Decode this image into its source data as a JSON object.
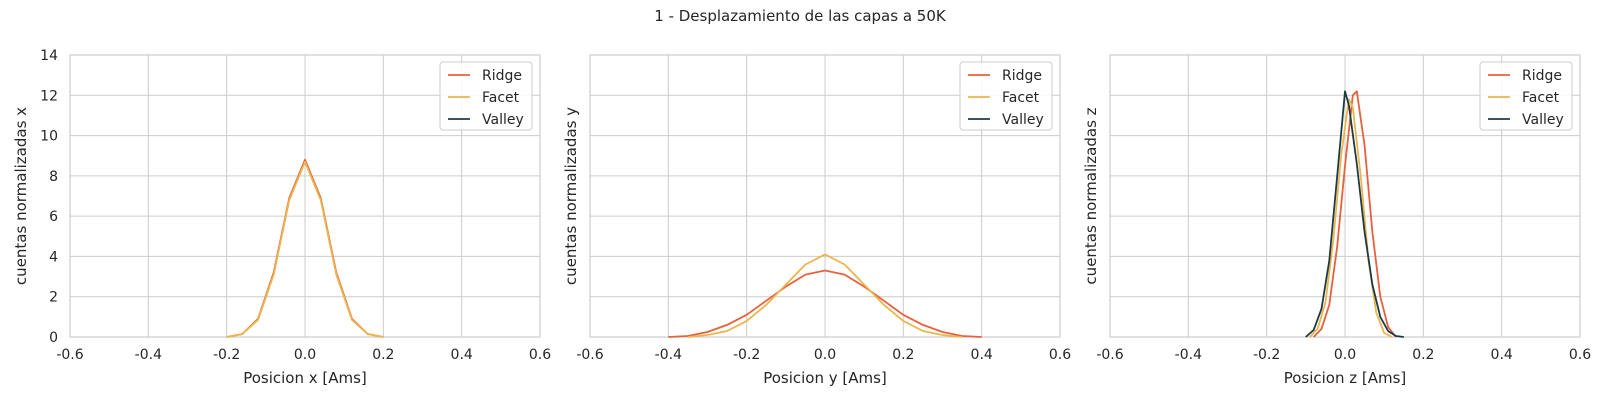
{
  "figure_title": "1 - Desplazamiento de las capas a 50K",
  "colors": {
    "Ridge": "#e8603c",
    "Facet": "#eab54d",
    "Valley": "#1d3b44",
    "grid": "#cccccc",
    "frame": "#cccccc",
    "text": "#262626"
  },
  "chart_data": [
    {
      "type": "line",
      "xlabel": "Posicion x [Ams]",
      "ylabel": "cuentas normalizadas x",
      "xlim": [
        -0.6,
        0.6
      ],
      "ylim": [
        0,
        14
      ],
      "xticks": [
        "-0.6",
        "-0.4",
        "-0.2",
        "0.0",
        "0.2",
        "0.4",
        "0.6"
      ],
      "yticks": [
        "0",
        "2",
        "4",
        "6",
        "8",
        "10",
        "12",
        "14"
      ],
      "show_yticklabels": true,
      "grid": true,
      "legend": "top-right",
      "series": [
        {
          "name": "Ridge",
          "x": [
            -0.2,
            -0.16,
            -0.12,
            -0.08,
            -0.04,
            0.0,
            0.04,
            0.08,
            0.12,
            0.16,
            0.2
          ],
          "y": [
            0.0,
            0.15,
            0.9,
            3.2,
            6.9,
            8.8,
            6.9,
            3.2,
            0.9,
            0.15,
            0.0
          ]
        },
        {
          "name": "Facet",
          "x": [
            -0.2,
            -0.16,
            -0.12,
            -0.08,
            -0.04,
            0.0,
            0.04,
            0.08,
            0.12,
            0.16,
            0.2
          ],
          "y": [
            0.0,
            0.15,
            0.85,
            3.1,
            6.8,
            8.7,
            6.8,
            3.1,
            0.85,
            0.15,
            0.0
          ]
        },
        {
          "name": "Valley",
          "x": [],
          "y": []
        }
      ]
    },
    {
      "type": "line",
      "xlabel": "Posicion y [Ams]",
      "ylabel": "cuentas normalizadas y",
      "xlim": [
        -0.6,
        0.6
      ],
      "ylim": [
        0,
        14
      ],
      "xticks": [
        "-0.6",
        "-0.4",
        "-0.2",
        "0.0",
        "0.2",
        "0.4",
        "0.6"
      ],
      "yticks": [
        "0",
        "2",
        "4",
        "6",
        "8",
        "10",
        "12",
        "14"
      ],
      "show_yticklabels": false,
      "grid": true,
      "legend": "top-right",
      "series": [
        {
          "name": "Ridge",
          "x": [
            -0.4,
            -0.35,
            -0.3,
            -0.25,
            -0.2,
            -0.15,
            -0.1,
            -0.05,
            0.0,
            0.05,
            0.1,
            0.15,
            0.2,
            0.25,
            0.3,
            0.35,
            0.4
          ],
          "y": [
            0.0,
            0.05,
            0.25,
            0.6,
            1.1,
            1.8,
            2.5,
            3.1,
            3.3,
            3.1,
            2.5,
            1.8,
            1.1,
            0.6,
            0.25,
            0.05,
            0.0
          ]
        },
        {
          "name": "Facet",
          "x": [
            -0.35,
            -0.3,
            -0.25,
            -0.2,
            -0.15,
            -0.1,
            -0.05,
            0.0,
            0.05,
            0.1,
            0.15,
            0.2,
            0.25,
            0.3,
            0.35
          ],
          "y": [
            0.0,
            0.1,
            0.3,
            0.8,
            1.6,
            2.6,
            3.6,
            4.1,
            3.6,
            2.6,
            1.6,
            0.8,
            0.3,
            0.1,
            0.0
          ]
        },
        {
          "name": "Valley",
          "x": [],
          "y": []
        }
      ]
    },
    {
      "type": "line",
      "xlabel": "Posicion z [Ams]",
      "ylabel": "cuentas normalizadas z",
      "xlim": [
        -0.6,
        0.6
      ],
      "ylim": [
        0,
        14
      ],
      "xticks": [
        "-0.6",
        "-0.4",
        "-0.2",
        "0.0",
        "0.2",
        "0.4",
        "0.6"
      ],
      "yticks": [
        "0",
        "2",
        "4",
        "6",
        "8",
        "10",
        "12",
        "14"
      ],
      "show_yticklabels": false,
      "grid": true,
      "legend": "top-right",
      "series": [
        {
          "name": "Ridge",
          "x": [
            -0.08,
            -0.06,
            -0.04,
            -0.02,
            0.0,
            0.02,
            0.03,
            0.05,
            0.07,
            0.09,
            0.11,
            0.13
          ],
          "y": [
            0.0,
            0.4,
            1.6,
            4.5,
            8.5,
            12.0,
            12.2,
            9.5,
            5.2,
            2.0,
            0.5,
            0.0
          ]
        },
        {
          "name": "Facet",
          "x": [
            -0.09,
            -0.07,
            -0.05,
            -0.03,
            -0.01,
            0.01,
            0.02,
            0.04,
            0.06,
            0.08,
            0.1,
            0.12
          ],
          "y": [
            0.0,
            0.4,
            1.7,
            4.8,
            9.0,
            11.8,
            11.4,
            8.0,
            3.8,
            1.2,
            0.2,
            0.0
          ]
        },
        {
          "name": "Valley",
          "x": [
            -0.1,
            -0.08,
            -0.06,
            -0.04,
            -0.02,
            0.0,
            0.01,
            0.03,
            0.05,
            0.07,
            0.09,
            0.11,
            0.13,
            0.15
          ],
          "y": [
            0.0,
            0.35,
            1.4,
            3.8,
            8.0,
            12.2,
            11.5,
            8.6,
            5.2,
            2.6,
            1.0,
            0.3,
            0.05,
            0.0
          ]
        }
      ]
    }
  ]
}
